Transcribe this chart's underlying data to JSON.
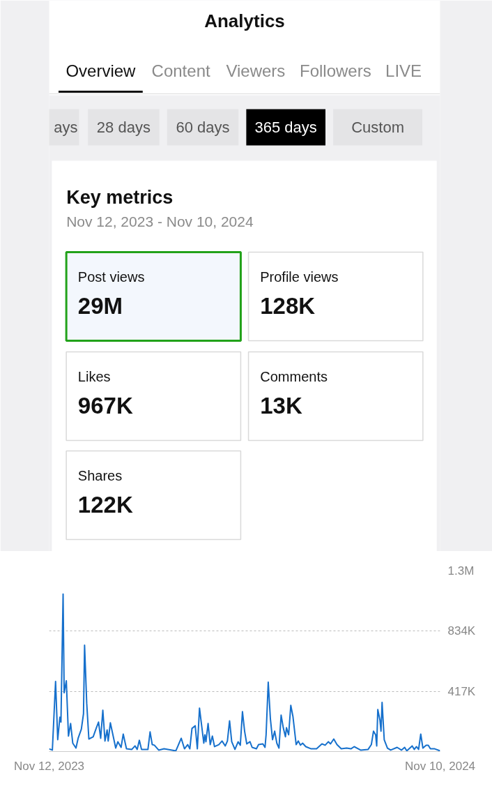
{
  "chart_data": [
    {
      "type": "other",
      "title": "Analytics",
      "annotations": [
        "Overview",
        "Content",
        "Viewers",
        "Followers",
        "LIVE"
      ]
    },
    {
      "type": "other",
      "annotations": [
        "ays",
        "28 days",
        "60 days",
        "365 days",
        "Custom"
      ]
    },
    {
      "type": "other",
      "title": "Key metrics",
      "subtitle": "Nov 12, 2023 - Nov 10, 2024",
      "annotations": [
        "Post views",
        "29M",
        "Profile views",
        "128K",
        "Likes",
        "967K",
        "Comments",
        "13K",
        "Shares",
        "122K"
      ]
    },
    {
      "type": "line",
      "color": "#1670cc",
      "grid": "y",
      "xlim": [
        "2023-11-12",
        "2024-11-10"
      ],
      "xticks": [
        {
          "value": "2023-11-12",
          "label": "Nov 12, 2023"
        },
        {
          "value": "2024-11-10",
          "label": "Nov 10, 2024"
        }
      ],
      "ylim": [
        0,
        1251000
      ],
      "yticks": [
        {
          "value": 417000,
          "label": "417K"
        },
        {
          "value": 834000,
          "label": "834K"
        },
        {
          "value": 1251000,
          "label": "1.3M"
        }
      ],
      "x": [
        "2023-11-12",
        "2023-11-15",
        "2023-11-18",
        "2023-11-20",
        "2023-11-22",
        "2023-11-23",
        "2023-11-25",
        "2023-11-26",
        "2023-11-28",
        "2023-11-30",
        "2023-12-02",
        "2023-12-04",
        "2023-12-07",
        "2023-12-09",
        "2023-12-12",
        "2023-12-14",
        "2023-12-15",
        "2023-12-17",
        "2023-12-19",
        "2023-12-23",
        "2023-12-26",
        "2023-12-28",
        "2023-12-30",
        "2024-01-01",
        "2024-01-03",
        "2024-01-05",
        "2024-01-06",
        "2024-01-08",
        "2024-01-13",
        "2024-01-15",
        "2024-01-18",
        "2024-01-20",
        "2024-01-23",
        "2024-01-28",
        "2024-01-31",
        "2024-02-02",
        "2024-02-04",
        "2024-02-06",
        "2024-02-12",
        "2024-02-14",
        "2024-02-16",
        "2024-02-18",
        "2024-02-22",
        "2024-02-27",
        "2024-03-09",
        "2024-03-14",
        "2024-03-17",
        "2024-03-20",
        "2024-03-22",
        "2024-03-24",
        "2024-03-27",
        "2024-03-29",
        "2024-03-31",
        "2024-04-04",
        "2024-04-05",
        "2024-04-06",
        "2024-04-08",
        "2024-04-10",
        "2024-04-12",
        "2024-04-14",
        "2024-04-18",
        "2024-04-21",
        "2024-04-24",
        "2024-04-26",
        "2024-04-28",
        "2024-04-30",
        "2024-05-03",
        "2024-05-06",
        "2024-05-08",
        "2024-05-10",
        "2024-05-12",
        "2024-05-14",
        "2024-05-17",
        "2024-05-19",
        "2024-05-23",
        "2024-05-25",
        "2024-05-29",
        "2024-05-31",
        "2024-06-01",
        "2024-06-03",
        "2024-06-05",
        "2024-06-07",
        "2024-06-09",
        "2024-06-11",
        "2024-06-13",
        "2024-06-15",
        "2024-06-17",
        "2024-06-19",
        "2024-06-20",
        "2024-06-22",
        "2024-06-24",
        "2024-06-26",
        "2024-06-29",
        "2024-07-01",
        "2024-07-03",
        "2024-07-05",
        "2024-07-08",
        "2024-07-13",
        "2024-07-18",
        "2024-07-23",
        "2024-07-26",
        "2024-07-29",
        "2024-07-31",
        "2024-08-03",
        "2024-08-06",
        "2024-08-10",
        "2024-08-15",
        "2024-08-19",
        "2024-08-22",
        "2024-08-28",
        "2024-09-04",
        "2024-09-07",
        "2024-09-09",
        "2024-09-11",
        "2024-09-12",
        "2024-09-13",
        "2024-09-15",
        "2024-09-16",
        "2024-09-17",
        "2024-09-19",
        "2024-09-22",
        "2024-09-25",
        "2024-10-01",
        "2024-10-05",
        "2024-10-08",
        "2024-10-10",
        "2024-10-15",
        "2024-10-17",
        "2024-10-19",
        "2024-10-21",
        "2024-10-23",
        "2024-10-25",
        "2024-10-28",
        "2024-10-30",
        "2024-11-01",
        "2024-11-05",
        "2024-11-10"
      ],
      "values": [
        19000,
        10000,
        485000,
        82000,
        238000,
        204000,
        1091000,
        407000,
        490000,
        107000,
        194000,
        58000,
        24000,
        92000,
        155000,
        262000,
        737000,
        335000,
        87000,
        102000,
        165000,
        204000,
        92000,
        286000,
        73000,
        150000,
        73000,
        199000,
        24000,
        68000,
        29000,
        121000,
        19000,
        15000,
        39000,
        15000,
        78000,
        15000,
        15000,
        136000,
        48000,
        44000,
        10000,
        19000,
        5000,
        92000,
        19000,
        48000,
        19000,
        160000,
        179000,
        19000,
        301000,
        58000,
        116000,
        68000,
        194000,
        48000,
        107000,
        34000,
        48000,
        73000,
        39000,
        73000,
        213000,
        68000,
        15000,
        68000,
        44000,
        276000,
        141000,
        53000,
        68000,
        29000,
        19000,
        48000,
        53000,
        29000,
        116000,
        480000,
        228000,
        82000,
        141000,
        58000,
        24000,
        252000,
        165000,
        102000,
        165000,
        116000,
        320000,
        243000,
        48000,
        73000,
        44000,
        58000,
        34000,
        19000,
        19000,
        53000,
        44000,
        68000,
        53000,
        87000,
        48000,
        19000,
        24000,
        19000,
        34000,
        10000,
        15000,
        48000,
        141000,
        116000,
        39000,
        291000,
        218000,
        141000,
        340000,
        82000,
        24000,
        10000,
        29000,
        10000,
        29000,
        5000,
        39000,
        15000,
        34000,
        15000,
        121000,
        24000,
        44000,
        44000,
        19000,
        19000,
        5000
      ]
    }
  ]
}
